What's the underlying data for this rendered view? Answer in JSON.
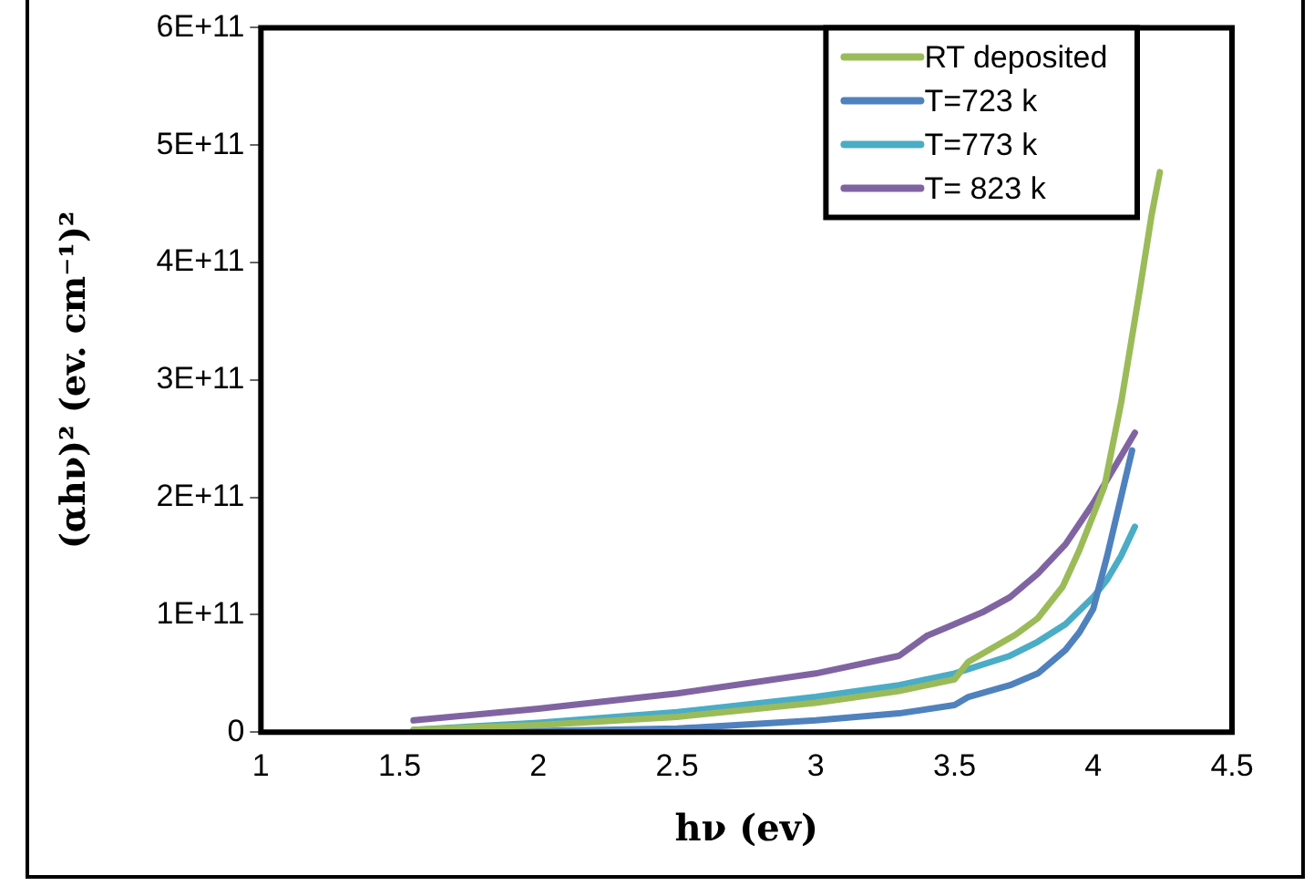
{
  "chart_data": {
    "type": "line",
    "xlabel": "hν (ev)",
    "ylabel": "(αhν)² (ev. cm⁻¹)²",
    "xlim": [
      1,
      4.5
    ],
    "xticks": [
      1,
      1.5,
      2,
      2.5,
      3,
      3.5,
      4,
      4.5
    ],
    "ylim": [
      0,
      600000000000
    ],
    "yticks": [
      0,
      {
        "value": 100000000000,
        "label": "1E+11"
      },
      {
        "value": 200000000000,
        "label": "2E+11"
      },
      {
        "value": 300000000000,
        "label": "3E+11"
      },
      {
        "value": 400000000000,
        "label": "4E+11"
      },
      {
        "value": 500000000000,
        "label": "5E+11"
      },
      {
        "value": 600000000000,
        "label": "6E+11"
      }
    ],
    "grid": false,
    "legend": "top right",
    "marker": "none",
    "line_style": "solid",
    "series": [
      {
        "name": "RT deposited",
        "color": "#9bbb59",
        "x": [
          1.55,
          2,
          2.5,
          3,
          3.3,
          3.5,
          3.55,
          3.72,
          3.8,
          3.89,
          3.95,
          4.0,
          4.04,
          4.1,
          4.17,
          4.21,
          4.24
        ],
        "values": [
          2000000000,
          6000000000,
          13000000000,
          25000000000,
          35000000000,
          45000000000,
          60000000000,
          83000000000,
          97000000000,
          124000000000,
          155000000000,
          185000000000,
          209000000000,
          280000000000,
          380000000000,
          440000000000,
          477000000000
        ]
      },
      {
        "name": "T=723 k",
        "color": "#4f81bd",
        "x": [
          1.55,
          2,
          2.5,
          3,
          3.3,
          3.5,
          3.55,
          3.7,
          3.8,
          3.9,
          3.95,
          4.0,
          4.05,
          4.1,
          4.14
        ],
        "values": [
          0,
          1000000000,
          3000000000,
          10000000000,
          16000000000,
          23000000000,
          30000000000,
          40000000000,
          50000000000,
          70000000000,
          85000000000,
          105000000000,
          150000000000,
          200000000000,
          240000000000
        ]
      },
      {
        "name": "T=773 k",
        "color": "#4bacc6",
        "x": [
          1.55,
          2,
          2.5,
          3,
          3.3,
          3.5,
          3.7,
          3.8,
          3.9,
          4.0,
          4.05,
          4.1,
          4.15
        ],
        "values": [
          2000000000,
          8000000000,
          17000000000,
          30000000000,
          40000000000,
          50000000000,
          65000000000,
          77000000000,
          92000000000,
          115000000000,
          130000000000,
          150000000000,
          175000000000
        ]
      },
      {
        "name": "T= 823 k",
        "color": "#8064a2",
        "x": [
          1.55,
          2,
          2.5,
          3,
          3.3,
          3.4,
          3.5,
          3.6,
          3.7,
          3.8,
          3.9,
          4.0,
          4.05,
          4.1,
          4.15
        ],
        "values": [
          10000000000,
          20000000000,
          33000000000,
          50000000000,
          65000000000,
          82000000000,
          92000000000,
          102000000000,
          115000000000,
          135000000000,
          160000000000,
          195000000000,
          215000000000,
          235000000000,
          255000000000
        ]
      }
    ]
  }
}
